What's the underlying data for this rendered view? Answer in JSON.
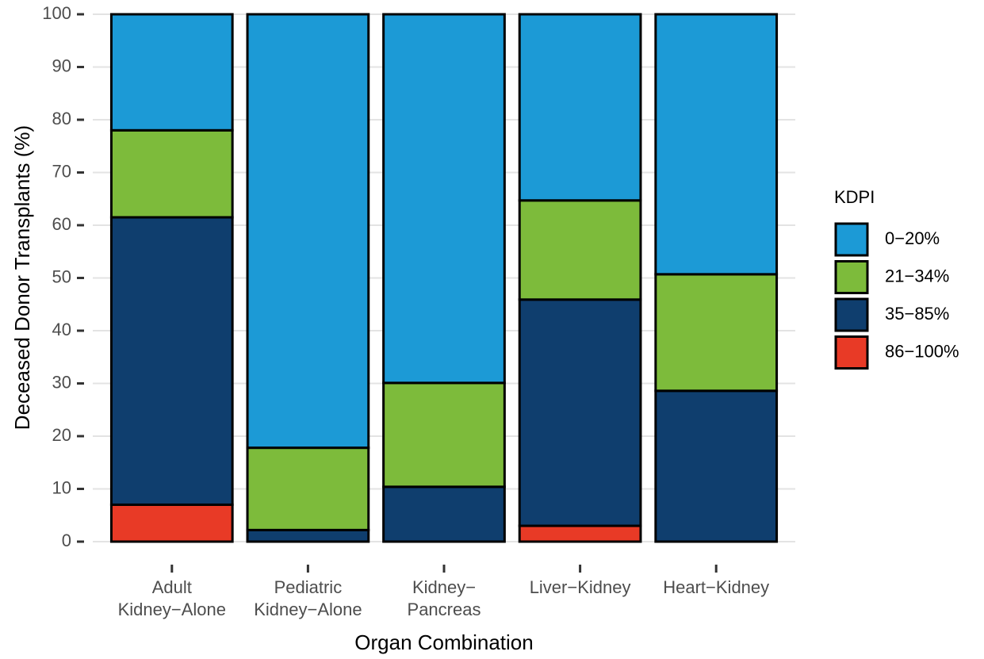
{
  "chart_data": {
    "type": "stacked-bar",
    "categories": [
      [
        "Adult",
        "Kidney−Alone"
      ],
      [
        "Pediatric",
        "Kidney−Alone"
      ],
      [
        "Kidney−",
        "Pancreas"
      ],
      [
        "Liver−Kidney"
      ],
      [
        "Heart−Kidney"
      ]
    ],
    "series": [
      {
        "name": "0−20%",
        "color": "#1c9ad6",
        "values": [
          22,
          82.2,
          69.9,
          35.3,
          49.3
        ]
      },
      {
        "name": "21−34%",
        "color": "#7dbb3b",
        "values": [
          16.5,
          15.6,
          19.7,
          18.8,
          22.1
        ]
      },
      {
        "name": "35−85%",
        "color": "#0f3e6e",
        "values": [
          54.5,
          2.2,
          10.4,
          42.9,
          28.6
        ]
      },
      {
        "name": "86−100%",
        "color": "#e83a26",
        "values": [
          7,
          0,
          0,
          3,
          0
        ]
      }
    ],
    "x_label": "Organ Combination",
    "y_label": "Deceased Donor Transplants (%)",
    "legend_title": "KDPI",
    "legend": "right",
    "ylim": [
      0,
      100
    ],
    "yticks": [
      0,
      10,
      20,
      30,
      40,
      50,
      60,
      70,
      80,
      90,
      100
    ],
    "grid": true
  }
}
